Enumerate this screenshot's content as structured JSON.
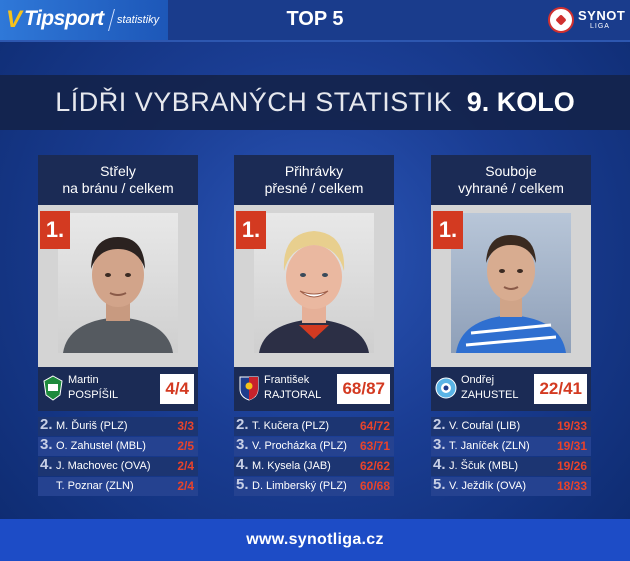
{
  "header": {
    "brand_mark": "V",
    "brand_name": "Tipsport",
    "brand_sub": "statistiky",
    "title": "TOP 5",
    "league_name": "SYNOT",
    "league_sub": "LIGA"
  },
  "banner": {
    "title": "LÍDŘI VYBRANÝCH STATISTIK",
    "round": "9. KOLO"
  },
  "columns": [
    {
      "heading": [
        "Střely",
        "na bránu / celkem"
      ],
      "rank": "1.",
      "first_name": "Martin",
      "last_name": "POSPÍŠIL",
      "score": "4/4",
      "others": [
        {
          "rank": "2.",
          "name": "M. Ďuriš (PLZ)",
          "value": "3/3"
        },
        {
          "rank": "3.",
          "name": "O. Zahustel (MBL)",
          "value": "2/5"
        },
        {
          "rank": "4.",
          "name": "J. Machovec (OVA)",
          "value": "2/4"
        },
        {
          "rank": "",
          "name": "T. Poznar (ZLN)",
          "value": "2/4"
        }
      ]
    },
    {
      "heading": [
        "Přihrávky",
        "přesné / celkem"
      ],
      "rank": "1.",
      "first_name": "František",
      "last_name": "RAJTORAL",
      "score": "68/87",
      "others": [
        {
          "rank": "2.",
          "name": "T. Kučera (PLZ)",
          "value": "64/72"
        },
        {
          "rank": "3.",
          "name": "V. Procházka (PLZ)",
          "value": "63/71"
        },
        {
          "rank": "4.",
          "name": "M. Kysela (JAB)",
          "value": "62/62"
        },
        {
          "rank": "5.",
          "name": "D. Limberský (PLZ)",
          "value": "60/68"
        }
      ]
    },
    {
      "heading": [
        "Souboje",
        "vyhrané / celkem"
      ],
      "rank": "1.",
      "first_name": "Ondřej",
      "last_name": "ZAHUSTEL",
      "score": "22/41",
      "others": [
        {
          "rank": "2.",
          "name": "V. Coufal (LIB)",
          "value": "19/33"
        },
        {
          "rank": "3.",
          "name": "T. Janíček (ZLN)",
          "value": "19/31"
        },
        {
          "rank": "4.",
          "name": "J. Ščuk (MBL)",
          "value": "19/26"
        },
        {
          "rank": "5.",
          "name": "V. Ježdík (OVA)",
          "value": "18/33"
        }
      ]
    }
  ],
  "footer": {
    "url": "www.synotliga.cz"
  },
  "colors": {
    "accent_red": "#d33a21",
    "brand_yellow": "#f6c21b",
    "dark_panel": "#1b2b55",
    "footer_blue": "#1d4cc6"
  }
}
